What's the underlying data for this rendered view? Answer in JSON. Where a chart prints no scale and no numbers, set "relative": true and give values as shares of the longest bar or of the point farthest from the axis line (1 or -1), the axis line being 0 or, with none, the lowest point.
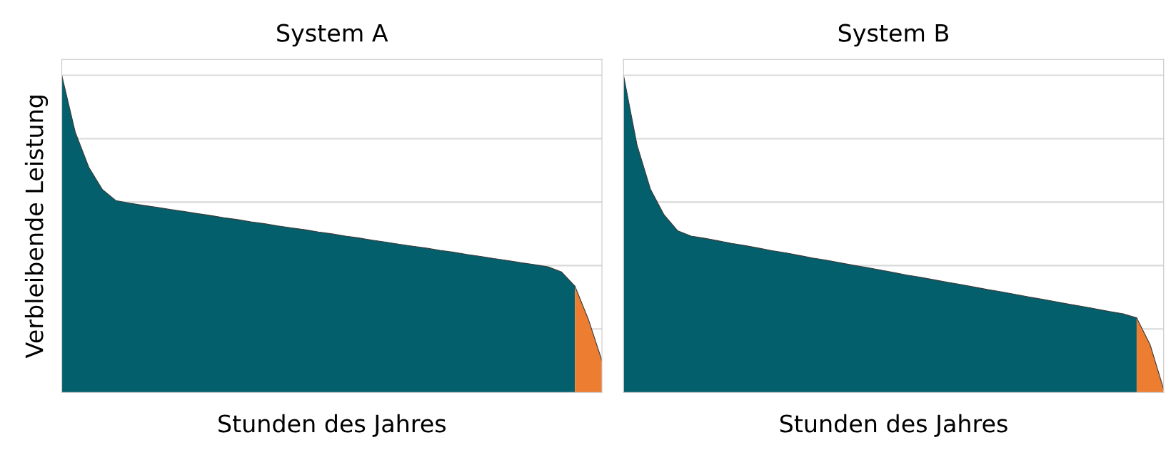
{
  "chart_data": [
    {
      "type": "area",
      "title": "System A",
      "xlabel": "Stunden des Jahres",
      "ylabel": "Verbleibende Leistung",
      "relative": true,
      "grid": "y",
      "tick_labels": false,
      "legend": false,
      "categories": [
        null,
        null,
        null,
        null,
        null,
        null,
        null,
        null,
        null,
        null,
        null,
        null,
        null,
        null,
        null,
        null,
        null,
        null,
        null,
        null,
        null,
        null,
        null,
        null,
        null,
        null,
        null,
        null,
        null,
        null,
        null,
        null,
        null,
        null,
        null,
        null,
        null,
        null,
        null,
        null,
        null
      ],
      "series": [
        {
          "color": "#035f6b",
          "values": [
            1.0,
            0.82,
            0.71,
            0.64,
            0.605,
            0.597,
            0.59,
            0.584,
            0.577,
            0.571,
            0.564,
            0.558,
            0.551,
            0.545,
            0.538,
            0.532,
            0.525,
            0.519,
            0.513,
            0.506,
            0.5,
            0.493,
            0.487,
            0.48,
            0.474,
            0.467,
            0.461,
            0.455,
            0.448,
            0.442,
            0.435,
            0.429,
            0.422,
            0.416,
            0.409,
            0.403,
            0.396,
            0.38,
            0.335,
            null,
            null
          ]
        },
        {
          "color": "#ed7d31",
          "values": [
            null,
            null,
            null,
            null,
            null,
            null,
            null,
            null,
            null,
            null,
            null,
            null,
            null,
            null,
            null,
            null,
            null,
            null,
            null,
            null,
            null,
            null,
            null,
            null,
            null,
            null,
            null,
            null,
            null,
            null,
            null,
            null,
            null,
            null,
            null,
            null,
            null,
            null,
            0.335,
            0.23,
            0.1
          ]
        }
      ]
    },
    {
      "type": "area",
      "title": "System B",
      "xlabel": "Stunden des Jahres",
      "relative": true,
      "grid": "y",
      "tick_labels": false,
      "legend": false,
      "categories": [
        null,
        null,
        null,
        null,
        null,
        null,
        null,
        null,
        null,
        null,
        null,
        null,
        null,
        null,
        null,
        null,
        null,
        null,
        null,
        null,
        null,
        null,
        null,
        null,
        null,
        null,
        null,
        null,
        null,
        null,
        null,
        null,
        null,
        null,
        null,
        null,
        null,
        null,
        null,
        null,
        null
      ],
      "series": [
        {
          "color": "#035f6b",
          "values": [
            1.0,
            0.78,
            0.64,
            0.56,
            0.51,
            0.493,
            0.486,
            0.478,
            0.47,
            0.463,
            0.455,
            0.447,
            0.44,
            0.432,
            0.424,
            0.417,
            0.409,
            0.401,
            0.394,
            0.386,
            0.378,
            0.37,
            0.363,
            0.355,
            0.347,
            0.34,
            0.332,
            0.324,
            0.317,
            0.309,
            0.301,
            0.294,
            0.286,
            0.278,
            0.271,
            0.263,
            0.255,
            0.248,
            0.235,
            null,
            null
          ]
        },
        {
          "color": "#ed7d31",
          "values": [
            null,
            null,
            null,
            null,
            null,
            null,
            null,
            null,
            null,
            null,
            null,
            null,
            null,
            null,
            null,
            null,
            null,
            null,
            null,
            null,
            null,
            null,
            null,
            null,
            null,
            null,
            null,
            null,
            null,
            null,
            null,
            null,
            null,
            null,
            null,
            null,
            null,
            null,
            0.235,
            0.15,
            0.01
          ]
        }
      ]
    }
  ]
}
